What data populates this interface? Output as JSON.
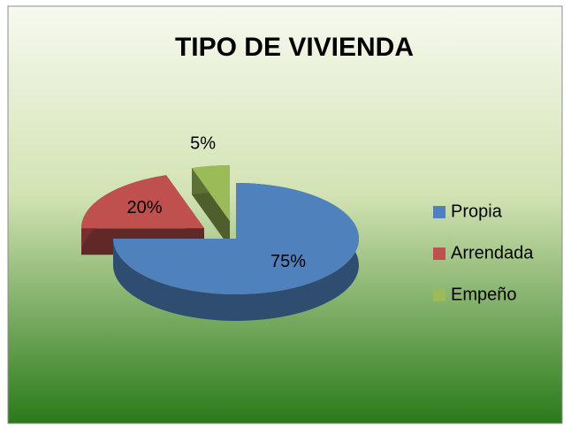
{
  "chart_data": {
    "type": "pie",
    "title": "TIPO DE VIVIENDA",
    "categories": [
      "Propia",
      "Arrendada",
      "Empeño"
    ],
    "values": [
      75,
      20,
      5
    ],
    "value_labels": [
      "75%",
      "20%",
      "5%"
    ],
    "colors": [
      "#4f81bd",
      "#c0504d",
      "#9bbb59"
    ],
    "legend": "right"
  }
}
